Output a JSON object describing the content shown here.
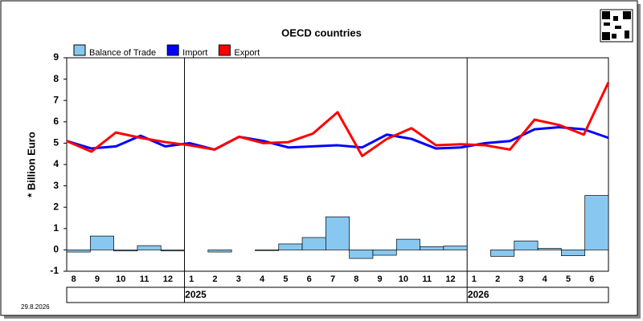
{
  "chart_data": {
    "type": "bar_line",
    "title": "OECD countries",
    "y_label": "* Billion Euro",
    "date_note": "29.8.2026",
    "categories": [
      "8",
      "9",
      "10",
      "11",
      "12",
      "1",
      "2",
      "3",
      "4",
      "5",
      "6",
      "7",
      "8",
      "9",
      "10",
      "11",
      "12",
      "1",
      "2",
      "3",
      "4",
      "5",
      "6"
    ],
    "year_groups": [
      null,
      "2025",
      "2026"
    ],
    "series": [
      {
        "name": "Balance of Trade",
        "kind": "bar",
        "color": "#88c8f0",
        "values": [
          -0.1,
          0.65,
          -0.05,
          0.2,
          -0.05,
          0,
          -0.1,
          0,
          -0.03,
          0.28,
          0.58,
          1.55,
          -0.4,
          -0.25,
          0.5,
          0.15,
          0.18,
          0,
          -0.3,
          0.42,
          0.07,
          -0.27,
          2.55
        ]
      },
      {
        "name": "Import",
        "kind": "line",
        "color": "#0000ff",
        "values": [
          5.1,
          4.75,
          4.85,
          5.35,
          4.85,
          5.0,
          4.7,
          5.3,
          5.1,
          4.8,
          4.85,
          4.9,
          4.8,
          5.4,
          5.2,
          4.75,
          4.8,
          5.0,
          5.1,
          5.65,
          5.75,
          5.65,
          5.25
        ]
      },
      {
        "name": "Export",
        "kind": "line",
        "color": "#ff0000",
        "values": [
          5.1,
          4.6,
          5.5,
          5.25,
          5.05,
          4.9,
          4.7,
          5.3,
          5.0,
          5.05,
          5.45,
          6.45,
          4.4,
          5.2,
          5.7,
          4.9,
          4.95,
          4.9,
          4.7,
          6.1,
          5.85,
          5.4,
          7.85
        ]
      }
    ],
    "ylim": [
      -1,
      9
    ],
    "yticks": [
      -1,
      0,
      1,
      2,
      3,
      4,
      5,
      6,
      7,
      8,
      9
    ]
  }
}
